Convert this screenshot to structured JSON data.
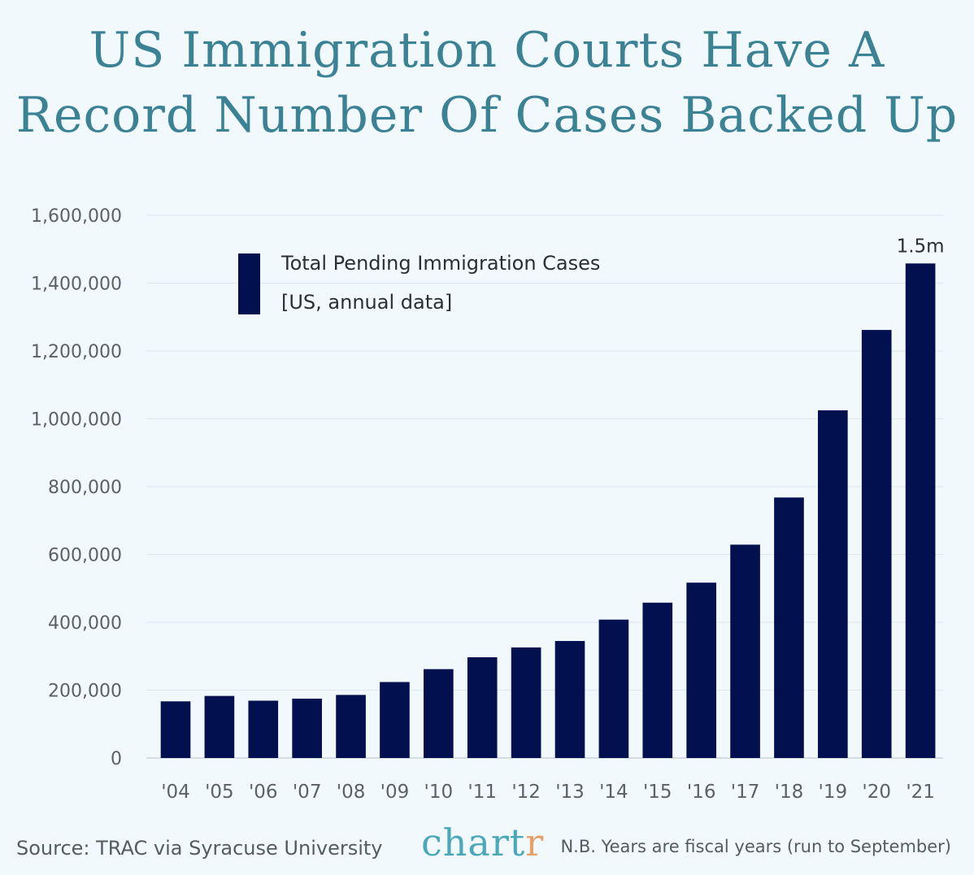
{
  "title_line1": "US Immigration Courts Have A",
  "title_line2": "Record Number Of Cases Backed Up",
  "legend": {
    "series_label": "Total Pending Immigration Cases",
    "series_sublabel": "[US, annual data]",
    "color": "#03104f"
  },
  "footer": {
    "source": "Source: TRAC via Syracuse University",
    "brand_main": "chart",
    "brand_accent": "r",
    "note": "N.B. Years are fiscal years (run to September)"
  },
  "colors": {
    "background": "#f1f9fd",
    "bar": "#03104f",
    "title": "#3b8294",
    "gridline": "#dde8ee",
    "brand": "#4aa8b8",
    "brand_accent": "#e8a06a"
  },
  "chart_data": {
    "type": "bar",
    "categories": [
      "'04",
      "'05",
      "'06",
      "'07",
      "'08",
      "'09",
      "'10",
      "'11",
      "'12",
      "'13",
      "'14",
      "'15",
      "'16",
      "'17",
      "'18",
      "'19",
      "'20",
      "'21"
    ],
    "series": [
      {
        "name": "Total Pending Immigration Cases",
        "values": [
          167000,
          183000,
          169000,
          175000,
          186000,
          224000,
          262000,
          297000,
          326000,
          345000,
          408000,
          458000,
          517000,
          629000,
          768000,
          1025000,
          1262000,
          1458000
        ]
      }
    ],
    "data_labels": [
      {
        "category": "'21",
        "text": "1.5m"
      }
    ],
    "ylim": [
      0,
      1600000
    ],
    "yticks": [
      0,
      200000,
      400000,
      600000,
      800000,
      1000000,
      1200000,
      1400000,
      1600000
    ],
    "ytick_labels": [
      "0",
      "200,000",
      "400,000",
      "600,000",
      "800,000",
      "1,000,000",
      "1,200,000",
      "1,400,000",
      "1,600,000"
    ],
    "xlabel": "",
    "ylabel": "",
    "grid": true,
    "legend_position": "top-left"
  }
}
